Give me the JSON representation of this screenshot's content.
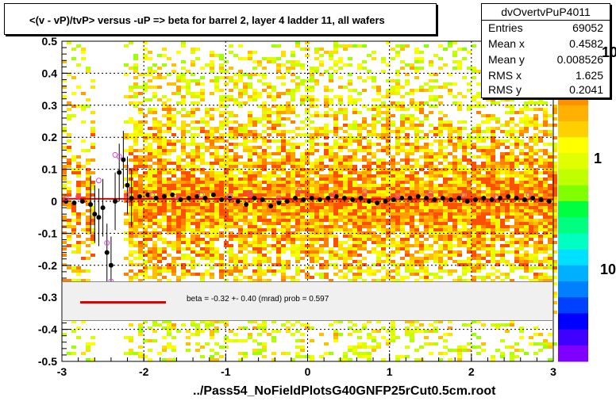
{
  "title": "<(v - vP)/tvP> versus  -uP => beta for barrel 2, layer 4 ladder 11, all wafers",
  "stats": {
    "name": "dvOvertvPuP4011",
    "rows": [
      {
        "key": "Entries",
        "value": "69052"
      },
      {
        "key": "Mean x",
        "value": "0.4582"
      },
      {
        "key": "Mean y",
        "value": "0.008526"
      },
      {
        "key": "RMS x",
        "value": "1.625"
      },
      {
        "key": "RMS y",
        "value": "0.2041"
      }
    ]
  },
  "fit_text": "beta =   -0.32 +-  0.40 (mrad) prob = 0.597",
  "file_label": "../Pass54_NoFieldPlotsG40GNFP25rCut0.5cm.root",
  "palette_labels": [
    "10",
    "1",
    "10"
  ],
  "colors": {
    "fit_line": "#e00000",
    "profile": "#000000",
    "open_markers": "#e040e0"
  },
  "chart_data": {
    "type": "heatmap",
    "title": "<(v - vP)/tvP> versus  -uP => beta for barrel 2, layer 4 ladder 11, all wafers",
    "xlim": [
      -3,
      3
    ],
    "ylim": [
      -0.5,
      0.5
    ],
    "x_ticks": [
      "-3",
      "-2",
      "-1",
      "0",
      "1",
      "2",
      "3"
    ],
    "y_ticks": [
      "-0.5",
      "-0.4",
      "-0.3",
      "-0.2",
      "-0.1",
      "0",
      "0.1",
      "0.2",
      "0.3",
      "0.4",
      "0.5"
    ],
    "grid": true,
    "empty_x_band": [
      -2.6,
      -2.25
    ],
    "fit": {
      "slope": -0.00032,
      "intercept": 0.007
    },
    "series": [
      {
        "name": "profile",
        "x": [
          -2.95,
          -2.85,
          -2.75,
          -2.65,
          -2.6,
          -2.55,
          -2.5,
          -2.45,
          -2.4,
          -2.35,
          -2.3,
          -2.25,
          -2.2,
          -2.15,
          -2.05,
          -1.95,
          -1.85,
          -1.75,
          -1.65,
          -1.55,
          -1.45,
          -1.35,
          -1.25,
          -1.15,
          -1.05,
          -0.95,
          -0.85,
          -0.75,
          -0.65,
          -0.55,
          -0.45,
          -0.35,
          -0.25,
          -0.15,
          -0.05,
          0.05,
          0.15,
          0.25,
          0.35,
          0.45,
          0.55,
          0.65,
          0.75,
          0.85,
          0.95,
          1.05,
          1.15,
          1.25,
          1.35,
          1.45,
          1.55,
          1.65,
          1.75,
          1.85,
          1.95,
          2.05,
          2.15,
          2.25,
          2.35,
          2.45,
          2.55,
          2.65,
          2.75,
          2.85,
          2.95
        ],
        "y": [
          0.0,
          -0.005,
          0.0,
          -0.01,
          -0.04,
          -0.05,
          -0.02,
          -0.16,
          -0.2,
          0.0,
          0.09,
          0.13,
          0.05,
          0.01,
          0.015,
          0.02,
          0.01,
          0.015,
          0.02,
          0.005,
          0.01,
          0.015,
          0.01,
          0.02,
          0.005,
          0.01,
          0.0,
          -0.01,
          0.01,
          0.005,
          -0.015,
          -0.005,
          0.0,
          0.01,
          0.005,
          0.01,
          0.005,
          0.01,
          0.015,
          0.01,
          0.005,
          0.01,
          0.0,
          -0.005,
          0.0,
          0.005,
          0.01,
          0.01,
          0.015,
          0.01,
          0.005,
          0.01,
          0.005,
          0.01,
          0.0,
          0.005,
          0.01,
          0.005,
          0.01,
          0.015,
          0.01,
          0.005,
          0.01,
          0.005,
          0.0
        ]
      },
      {
        "name": "open",
        "x": [
          -2.95,
          -2.8,
          -2.55,
          -2.45,
          -2.4,
          -2.35,
          -2.3,
          -2.2,
          -1.9,
          -1.6,
          -1.3,
          -0.95,
          -0.7,
          -0.35,
          -0.1,
          0.3,
          0.7,
          1.1,
          1.5,
          1.9,
          2.3,
          2.7
        ],
        "y": [
          0.01,
          0.015,
          0.065,
          -0.13,
          -0.25,
          0.145,
          0.14,
          0.02,
          0.02,
          0.015,
          0.02,
          0.015,
          0.025,
          0.01,
          0.035,
          0.02,
          0.03,
          0.015,
          0.025,
          0.02,
          0.015,
          0.02
        ]
      }
    ]
  }
}
